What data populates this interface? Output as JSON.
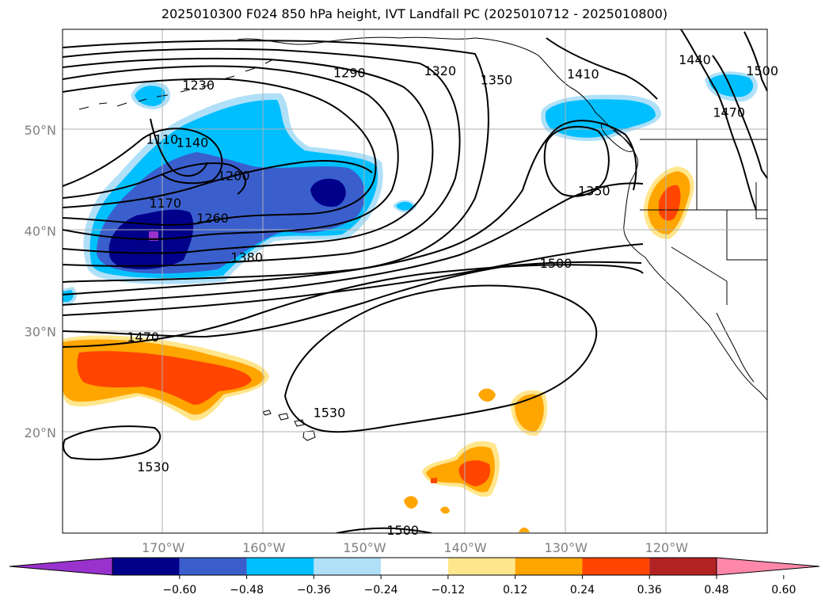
{
  "title": "2025010300 F024 850 hPa height, IVT Landfall PC (2025010712 - 2025010800)",
  "map": {
    "lat_labels": [
      {
        "lat": 50,
        "label": "50°N"
      },
      {
        "lat": 40,
        "label": "40°N"
      },
      {
        "lat": 30,
        "label": "30°N"
      },
      {
        "lat": 20,
        "label": "20°N"
      }
    ],
    "lon_labels": [
      {
        "lon": -170,
        "label": "170°W"
      },
      {
        "lon": -160,
        "label": "160°W"
      },
      {
        "lon": -150,
        "label": "150°W"
      },
      {
        "lon": -140,
        "label": "140°W"
      },
      {
        "lon": -130,
        "label": "130°W"
      },
      {
        "lon": -120,
        "label": "120°W"
      }
    ],
    "contour_labels": [
      {
        "text": "1230",
        "lon": -166.5,
        "lat": 54.5
      },
      {
        "text": "1290",
        "lon": -151.5,
        "lat": 55.7
      },
      {
        "text": "1320",
        "lon": -142.5,
        "lat": 55.9
      },
      {
        "text": "1350",
        "lon": -136.9,
        "lat": 55.0
      },
      {
        "text": "1410",
        "lon": -128.3,
        "lat": 55.6
      },
      {
        "text": "1440",
        "lon": -117.2,
        "lat": 57.0
      },
      {
        "text": "1470",
        "lon": -113.8,
        "lat": 51.8
      },
      {
        "text": "1500",
        "lon": -110.5,
        "lat": 55.9
      },
      {
        "text": "1110",
        "lon": -170.1,
        "lat": 49.1
      },
      {
        "text": "1140",
        "lon": -167.1,
        "lat": 48.8
      },
      {
        "text": "1200",
        "lon": -163.0,
        "lat": 45.5
      },
      {
        "text": "1170",
        "lon": -169.8,
        "lat": 42.8
      },
      {
        "text": "1260",
        "lon": -165.1,
        "lat": 41.3
      },
      {
        "text": "1380",
        "lon": -161.7,
        "lat": 37.4
      },
      {
        "text": "1350",
        "lon": -127.2,
        "lat": 44.0
      },
      {
        "text": "1500",
        "lon": -131.0,
        "lat": 36.8
      },
      {
        "text": "1470",
        "lon": -172.0,
        "lat": 29.5
      },
      {
        "text": "1530",
        "lon": -153.5,
        "lat": 22.0
      },
      {
        "text": "1530",
        "lon": -171.0,
        "lat": 16.6
      },
      {
        "text": "1500",
        "lon": -146.2,
        "lat": 10.3
      }
    ]
  },
  "colorbar": {
    "ticks": [
      "−0.60",
      "−0.48",
      "−0.36",
      "−0.24",
      "−0.12",
      "0.12",
      "0.24",
      "0.36",
      "0.48",
      "0.60"
    ],
    "colors": [
      "#9932cc",
      "#00008b",
      "#3a5fcd",
      "#00bfff",
      "#b0e0f8",
      "#ffffff",
      "#ffe68c",
      "#ffa500",
      "#ff4500",
      "#b22222",
      "#ff88aa"
    ]
  },
  "chart_data": {
    "type": "heatmap",
    "title": "2025010300 F024 850 hPa height, IVT Landfall PC (2025010712 - 2025010800)",
    "xlabel": "",
    "ylabel": "",
    "xlim": [
      -180,
      -110
    ],
    "ylim": [
      10,
      60
    ],
    "x_ticks": [
      "170°W",
      "160°W",
      "150°W",
      "140°W",
      "130°W",
      "120°W"
    ],
    "y_ticks": [
      "50°N",
      "40°N",
      "30°N",
      "20°N"
    ],
    "contour_field": "850 hPa height",
    "contour_labels": [
      1110,
      1140,
      1170,
      1200,
      1230,
      1260,
      1290,
      1320,
      1350,
      1380,
      1410,
      1440,
      1470,
      1500,
      1530
    ],
    "shading_field": "IVT Landfall PC",
    "colorbar_levels": [
      -0.6,
      -0.48,
      -0.36,
      -0.24,
      -0.12,
      0.12,
      0.24,
      0.36,
      0.48,
      0.6
    ],
    "grid": true
  }
}
